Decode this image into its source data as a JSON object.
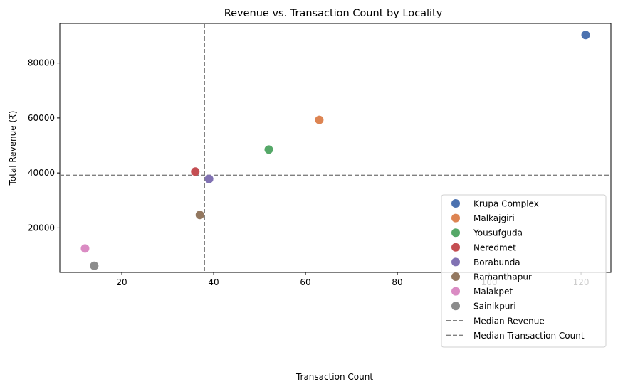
{
  "chart_data": {
    "type": "scatter",
    "title": "Revenue vs. Transaction Count by Locality",
    "xlabel": "Transaction Count",
    "ylabel": "Total Revenue (₹)",
    "xlim": [
      6.5,
      126.5
    ],
    "ylim": [
      3800,
      94400
    ],
    "xticks": [
      20,
      40,
      60,
      80,
      100,
      120
    ],
    "yticks": [
      20000,
      40000,
      60000,
      80000
    ],
    "grid": false,
    "legend_position": "lower right",
    "series": [
      {
        "name": "Krupa Complex",
        "color": "#4c72b0",
        "x": 121,
        "y": 90200
      },
      {
        "name": "Malkajgiri",
        "color": "#dd8452",
        "x": 63,
        "y": 59300
      },
      {
        "name": "Yousufguda",
        "color": "#55a868",
        "x": 52,
        "y": 48500
      },
      {
        "name": "Neredmet",
        "color": "#c44e52",
        "x": 36,
        "y": 40500
      },
      {
        "name": "Borabunda",
        "color": "#8172b3",
        "x": 39,
        "y": 37800
      },
      {
        "name": "Ramanthapur",
        "color": "#937860",
        "x": 37,
        "y": 24700
      },
      {
        "name": "Malakpet",
        "color": "#da8bc3",
        "x": 12,
        "y": 12500
      },
      {
        "name": "Sainikpuri",
        "color": "#8c8c8c",
        "x": 14,
        "y": 6200
      }
    ],
    "reference_lines": [
      {
        "name": "Median Revenue",
        "orientation": "horizontal",
        "value": 39150,
        "color": "#808080",
        "style": "dashed"
      },
      {
        "name": "Median Transaction Count",
        "orientation": "vertical",
        "value": 38,
        "color": "#808080",
        "style": "dashed"
      }
    ]
  }
}
